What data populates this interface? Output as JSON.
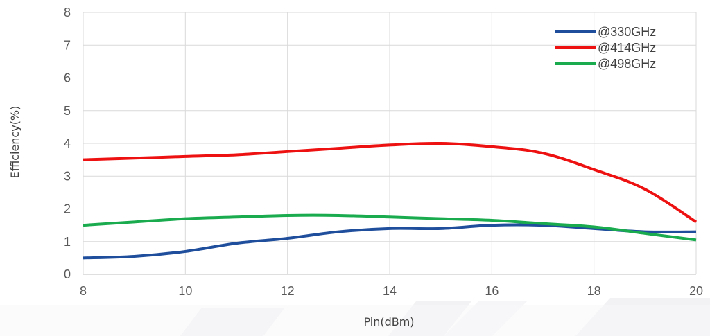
{
  "chart_data": {
    "type": "line",
    "xlabel": "Pin(dBm)",
    "ylabel": "Efficiency(%)",
    "xlim": [
      8,
      20
    ],
    "ylim": [
      0,
      8
    ],
    "x_ticks": [
      8,
      10,
      12,
      14,
      16,
      18,
      20
    ],
    "y_ticks": [
      0,
      1,
      2,
      3,
      4,
      5,
      6,
      7,
      8
    ],
    "grid": true,
    "legend_position": "top-right",
    "series": [
      {
        "name": "@330GHz",
        "color": "#1f4e9c",
        "x": [
          8,
          9,
          10,
          11,
          12,
          13,
          14,
          15,
          16,
          17,
          18,
          19,
          20
        ],
        "values": [
          0.5,
          0.55,
          0.7,
          0.95,
          1.1,
          1.3,
          1.4,
          1.4,
          1.5,
          1.5,
          1.4,
          1.3,
          1.3
        ]
      },
      {
        "name": "@414GHz",
        "color": "#ee1111",
        "x": [
          8,
          9,
          10,
          11,
          12,
          13,
          14,
          15,
          16,
          17,
          18,
          19,
          20
        ],
        "values": [
          3.5,
          3.55,
          3.6,
          3.65,
          3.75,
          3.85,
          3.95,
          4.0,
          3.9,
          3.7,
          3.2,
          2.6,
          1.6
        ]
      },
      {
        "name": "@498GHz",
        "color": "#1aab4f",
        "x": [
          8,
          9,
          10,
          11,
          12,
          13,
          14,
          15,
          16,
          17,
          18,
          19,
          20
        ],
        "values": [
          1.5,
          1.6,
          1.7,
          1.75,
          1.8,
          1.8,
          1.75,
          1.7,
          1.65,
          1.55,
          1.45,
          1.25,
          1.05
        ]
      }
    ]
  }
}
